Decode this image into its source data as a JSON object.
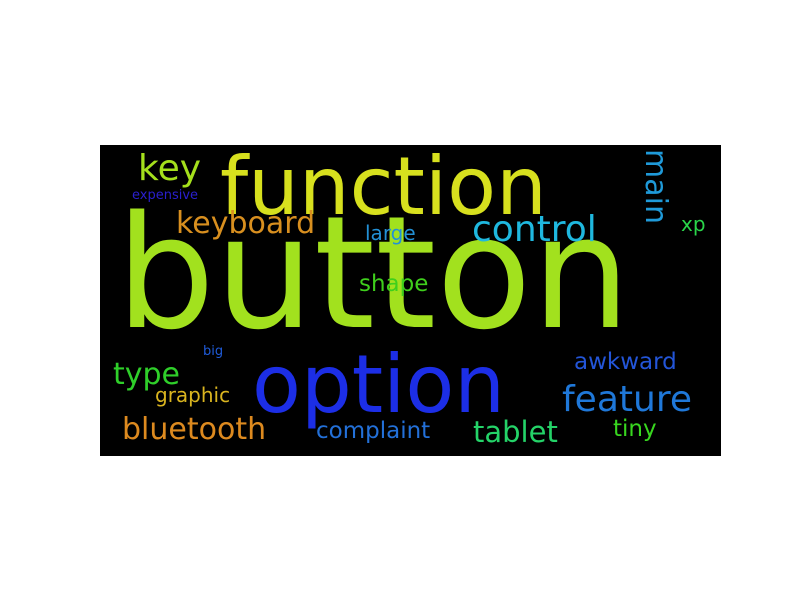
{
  "words": [
    {
      "id": "button",
      "text": "button",
      "color": "#a2e11e"
    },
    {
      "id": "function",
      "text": "function",
      "color": "#d7e01e"
    },
    {
      "id": "option",
      "text": "option",
      "color": "#1c2ee6"
    },
    {
      "id": "key",
      "text": "key",
      "color": "#a5e01c"
    },
    {
      "id": "keyboard",
      "text": "keyboard",
      "color": "#d88f1f"
    },
    {
      "id": "control",
      "text": "control",
      "color": "#1fb8df"
    },
    {
      "id": "main",
      "text": "main",
      "color": "#1f9ad9"
    },
    {
      "id": "expensive",
      "text": "expensive",
      "color": "#2a1fcf"
    },
    {
      "id": "large",
      "text": "large",
      "color": "#2391d6"
    },
    {
      "id": "xp",
      "text": "xp",
      "color": "#2ad64a"
    },
    {
      "id": "shape",
      "text": "shape",
      "color": "#3fcf1c"
    },
    {
      "id": "type",
      "text": "type",
      "color": "#2fcf2a"
    },
    {
      "id": "big",
      "text": "big",
      "color": "#1f5bd9"
    },
    {
      "id": "awkward",
      "text": "awkward",
      "color": "#2355d8"
    },
    {
      "id": "graphic",
      "text": "graphic",
      "color": "#d9b41f"
    },
    {
      "id": "feature",
      "text": "feature",
      "color": "#1f78d9"
    },
    {
      "id": "bluetooth",
      "text": "bluetooth",
      "color": "#dd8a1f"
    },
    {
      "id": "complaint",
      "text": "complaint",
      "color": "#2370d8"
    },
    {
      "id": "tablet",
      "text": "tablet",
      "color": "#24d368"
    },
    {
      "id": "tiny",
      "text": "tiny",
      "color": "#38d61f"
    }
  ]
}
